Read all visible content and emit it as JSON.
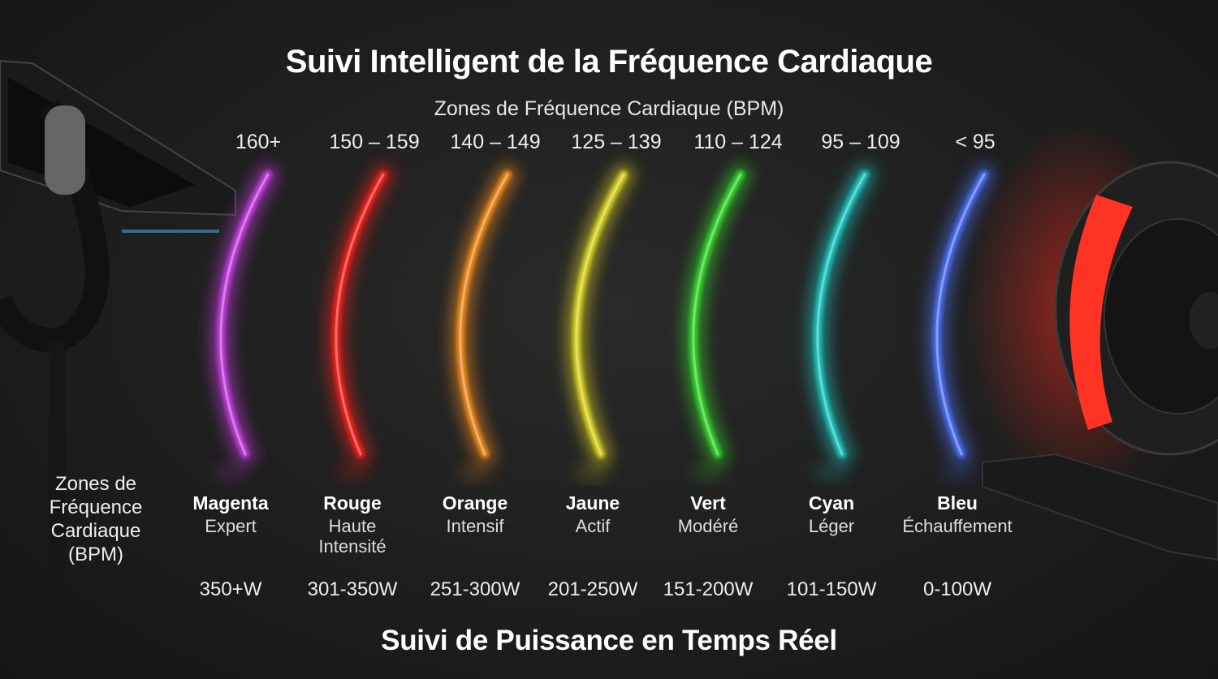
{
  "title": "Suivi Intelligent de la Fréquence Cardiaque",
  "zone_heading": "Zones de Fréquence Cardiaque (BPM)",
  "side_label": "Zones de Fréquence Cardiaque (BPM)",
  "footer_title": "Suivi de Puissance en Temps Réel",
  "zones": [
    {
      "bpm": "160+",
      "name": "Magenta",
      "level": "Expert",
      "power": "350+W",
      "color": "#c53ee0"
    },
    {
      "bpm": "150 – 159",
      "name": "Rouge",
      "level": "Haute Intensité",
      "power": "301-350W",
      "color": "#f0221e"
    },
    {
      "bpm": "140 – 149",
      "name": "Orange",
      "level": "Intensif",
      "power": "251-300W",
      "color": "#f08a1c"
    },
    {
      "bpm": "125 – 139",
      "name": "Jaune",
      "level": "Actif",
      "power": "201-250W",
      "color": "#dcd424"
    },
    {
      "bpm": "110 – 124",
      "name": "Vert",
      "level": "Modéré",
      "power": "151-200W",
      "color": "#34d62a"
    },
    {
      "bpm": "95 – 109",
      "name": "Cyan",
      "level": "Léger",
      "power": "101-150W",
      "color": "#1fc6c0"
    },
    {
      "bpm": "< 95",
      "name": "Bleu",
      "level": "Échauffement",
      "power": "0-100W",
      "color": "#4a6ef0"
    }
  ]
}
